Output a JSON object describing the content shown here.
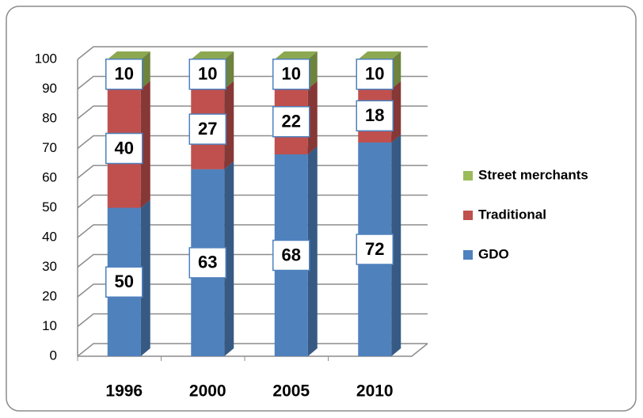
{
  "chart_data": {
    "type": "bar3d_stacked",
    "categories": [
      "1996",
      "2000",
      "2005",
      "2010"
    ],
    "series": [
      {
        "name": "GDO",
        "color": "#4f81bd",
        "values": [
          50,
          63,
          68,
          72
        ]
      },
      {
        "name": "Traditional",
        "color": "#c0504d",
        "values": [
          40,
          27,
          22,
          18
        ]
      },
      {
        "name": "Street merchants",
        "color": "#9bbb59",
        "values": [
          10,
          10,
          10,
          10
        ]
      }
    ],
    "ylim": [
      0,
      100
    ],
    "yticks": [
      0,
      10,
      20,
      30,
      40,
      50,
      60,
      70,
      80,
      90,
      100
    ],
    "grid": true,
    "legend": "right"
  }
}
